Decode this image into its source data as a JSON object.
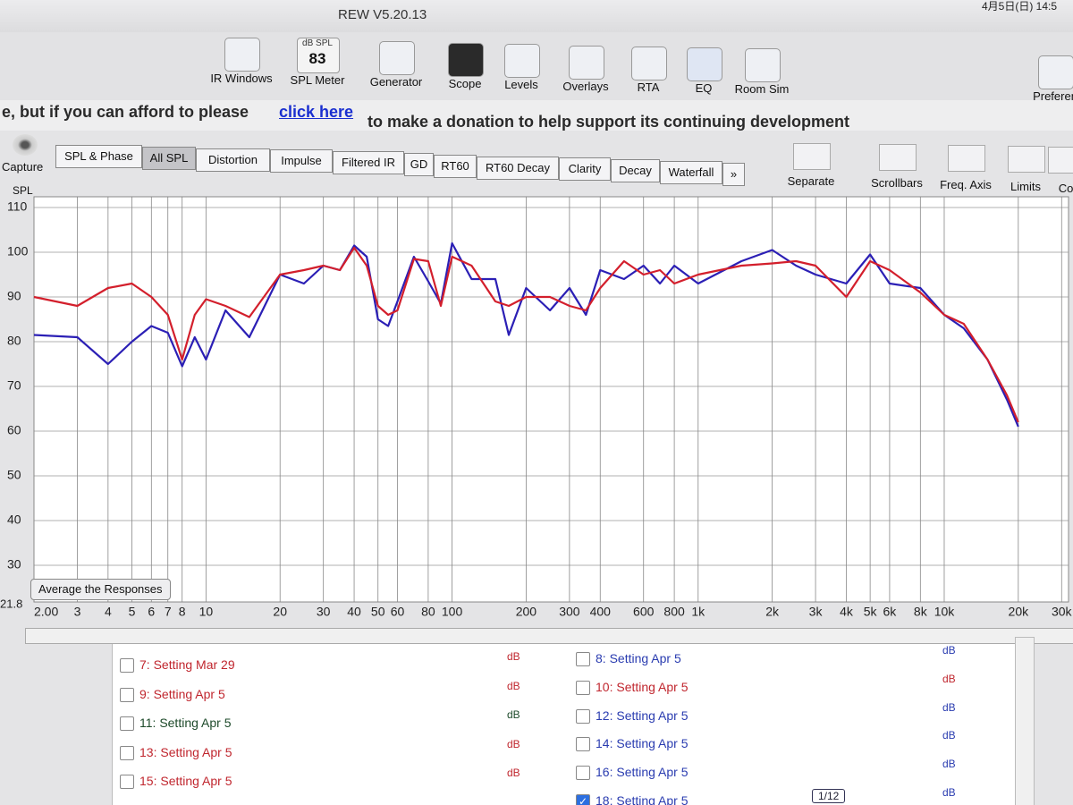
{
  "window": {
    "title": "REW V5.20.13",
    "clock": "4月5日(日) 14:5"
  },
  "toolbar": {
    "spl_meter": {
      "unit": "dB SPL",
      "reading": "83"
    },
    "items": [
      "IR Windows",
      "SPL Meter",
      "Generator",
      "Scope",
      "Levels",
      "Overlays",
      "RTA",
      "EQ",
      "Room Sim",
      "Preferen"
    ]
  },
  "banner": {
    "before": "e, but if you can afford to please",
    "link": "click here",
    "after": "to make a donation to help support its continuing development"
  },
  "capture": "Capture",
  "tabs": {
    "items": [
      "SPL & Phase",
      "All SPL",
      "Distortion",
      "Impulse",
      "Filtered IR",
      "GD",
      "RT60",
      "RT60 Decay",
      "Clarity",
      "Decay",
      "Waterfall",
      "»"
    ],
    "selected": "All SPL"
  },
  "tools": [
    "Separate",
    "Scrollbars",
    "Freq. Axis",
    "Limits",
    "Co"
  ],
  "chart": {
    "type": "line",
    "y_label": "SPL",
    "log_x": true,
    "grid": true,
    "button": "Average the Responses",
    "ylim": [
      21.8,
      110
    ],
    "yticks": [
      30,
      40,
      50,
      60,
      70,
      80,
      90,
      100,
      110
    ],
    "xlim": [
      2,
      32000
    ],
    "xticks": [
      {
        "value": 2,
        "label": "2.00"
      },
      3,
      4,
      5,
      6,
      7,
      8,
      10,
      20,
      30,
      40,
      50,
      60,
      80,
      100,
      200,
      300,
      400,
      600,
      800,
      {
        "value": 1000,
        "label": "1k"
      },
      {
        "value": 2000,
        "label": "2k"
      },
      {
        "value": 3000,
        "label": "3k"
      },
      {
        "value": 4000,
        "label": "4k"
      },
      {
        "value": 5000,
        "label": "5k"
      },
      {
        "value": 6000,
        "label": "6k"
      },
      {
        "value": 8000,
        "label": "8k"
      },
      {
        "value": 10000,
        "label": "10k"
      },
      {
        "value": 20000,
        "label": "20k"
      },
      {
        "value": 30000,
        "label": "30k"
      }
    ],
    "x": [
      2,
      3,
      4,
      5,
      6,
      7,
      8,
      9,
      10,
      12,
      15,
      20,
      25,
      30,
      35,
      40,
      45,
      50,
      55,
      60,
      70,
      80,
      90,
      100,
      120,
      150,
      170,
      200,
      250,
      300,
      350,
      400,
      500,
      600,
      700,
      800,
      1000,
      1500,
      2000,
      2500,
      3000,
      4000,
      5000,
      6000,
      8000,
      10000,
      12000,
      15000,
      18000,
      20000
    ],
    "series": [
      {
        "color": "#2b1fb5",
        "values": [
          81.5,
          81,
          75,
          80,
          83.5,
          82,
          74.5,
          81,
          76,
          87,
          81,
          95,
          93,
          97,
          96,
          101.5,
          99,
          85,
          83.5,
          89,
          99,
          93.5,
          88.5,
          102,
          94,
          94,
          81.5,
          92,
          87,
          92,
          86,
          96,
          94,
          97,
          93,
          97,
          93,
          98,
          100.5,
          97,
          95,
          93,
          99.5,
          93,
          92,
          86,
          83,
          76,
          67,
          61
        ]
      },
      {
        "color": "#d31f2c",
        "values": [
          90,
          88,
          92,
          93,
          90,
          86,
          76,
          86,
          89.5,
          88,
          85.5,
          95,
          96,
          97,
          96,
          101,
          97,
          88,
          86,
          87,
          98.5,
          98,
          88,
          99,
          97,
          89,
          88,
          90,
          90,
          88,
          87,
          92,
          98,
          95,
          96,
          93,
          95,
          97,
          97.5,
          98,
          97,
          90,
          98,
          96,
          91,
          86,
          84,
          76,
          68,
          62
        ]
      }
    ]
  },
  "measurements": {
    "left": [
      {
        "label": "7: Setting Mar 29",
        "color": "#c0262e",
        "unit": "dB",
        "checked": false
      },
      {
        "label": "9: Setting Apr 5",
        "color": "#c0262e",
        "unit": "dB",
        "checked": false
      },
      {
        "label": "11: Setting Apr 5",
        "color": "#1d4a2a",
        "unit": "dB",
        "checked": false
      },
      {
        "label": "13: Setting Apr 5",
        "color": "#c0262e",
        "unit": "dB",
        "checked": false
      },
      {
        "label": "15: Setting Apr 5",
        "color": "#c0262e",
        "unit": "dB",
        "checked": false
      }
    ],
    "right": [
      {
        "label": "8: Setting Apr 5",
        "color": "#2a3cb0",
        "unit": "dB",
        "checked": false
      },
      {
        "label": "10: Setting Apr 5",
        "color": "#c0262e",
        "unit": "dB",
        "checked": false
      },
      {
        "label": "12: Setting Apr 5",
        "color": "#2a3cb0",
        "unit": "dB",
        "checked": false
      },
      {
        "label": "14: Setting Apr 5",
        "color": "#2a3cb0",
        "unit": "dB",
        "checked": false
      },
      {
        "label": "16: Setting Apr 5",
        "color": "#2a3cb0",
        "unit": "dB",
        "checked": false
      },
      {
        "label": "18: Setting Apr 5",
        "color": "#2a3cb0",
        "unit": "dB",
        "checked": true
      }
    ],
    "page": "1/12"
  }
}
